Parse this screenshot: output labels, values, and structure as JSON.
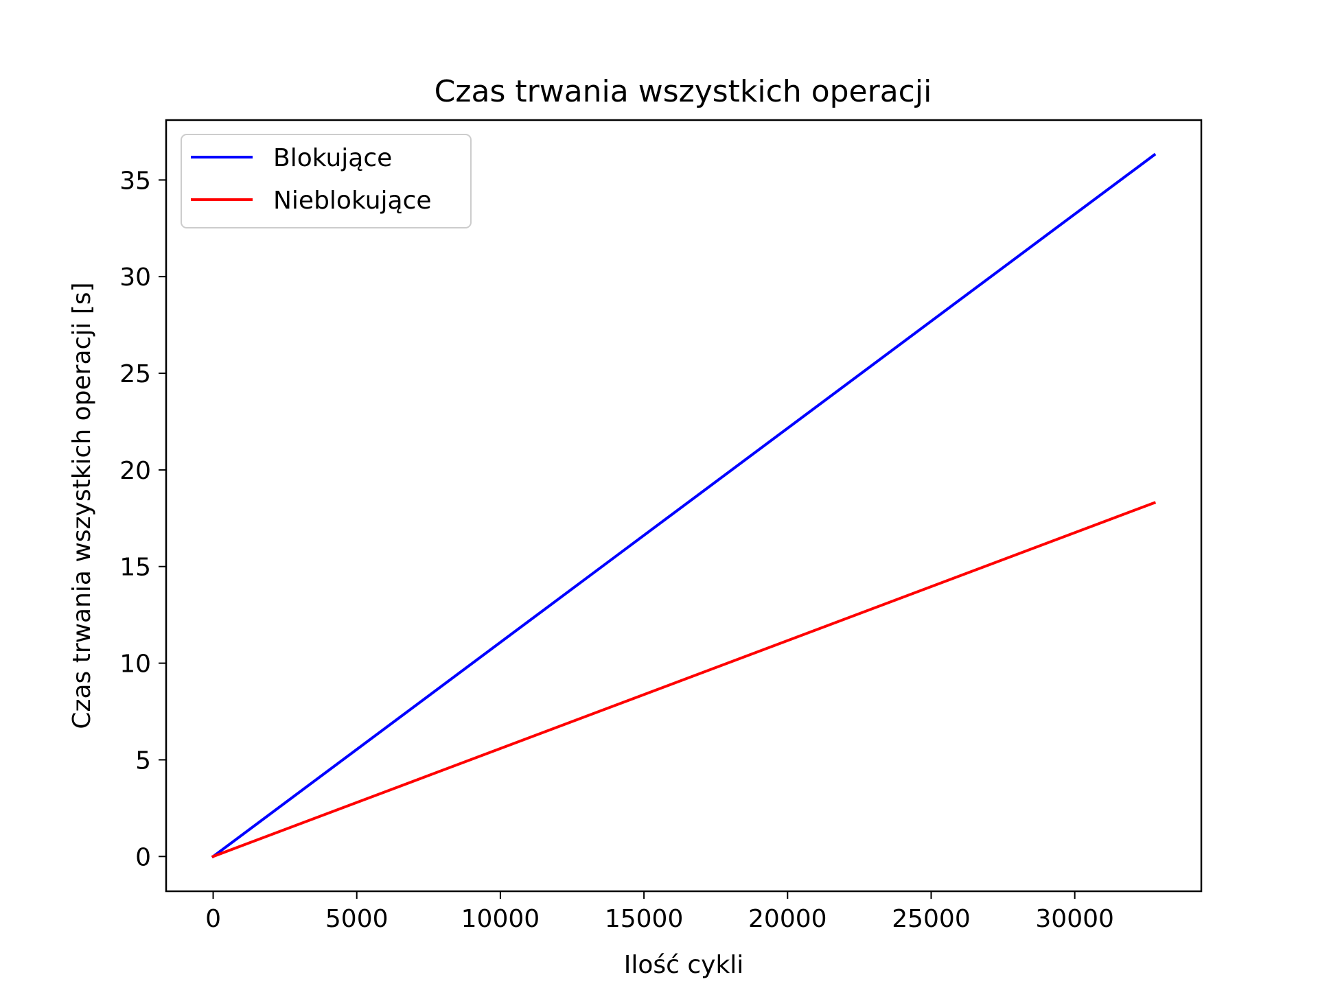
{
  "chart_data": {
    "type": "line",
    "title": "Czas trwania wszystkich operacji",
    "xlabel": "Ilość cykli",
    "ylabel": "Czas trwania wszystkich operacji [s]",
    "xlim": [
      -1638,
      34406
    ],
    "ylim": [
      -1.8,
      38.1
    ],
    "xticks": [
      0,
      5000,
      10000,
      15000,
      20000,
      25000,
      30000
    ],
    "xtick_labels": [
      "0",
      "5000",
      "10000",
      "15000",
      "20000",
      "25000",
      "30000"
    ],
    "yticks": [
      0,
      5,
      10,
      15,
      20,
      25,
      30,
      35
    ],
    "ytick_labels": [
      "0",
      "5",
      "10",
      "15",
      "20",
      "25",
      "30",
      "35"
    ],
    "grid": false,
    "legend_position": "top-left",
    "series": [
      {
        "name": "Blokujące",
        "color": "#0000ff",
        "x": [
          0,
          32768
        ],
        "y": [
          0,
          36.3
        ]
      },
      {
        "name": "Nieblokujące",
        "color": "#ff0000",
        "x": [
          0,
          32768
        ],
        "y": [
          0,
          18.3
        ]
      }
    ]
  }
}
